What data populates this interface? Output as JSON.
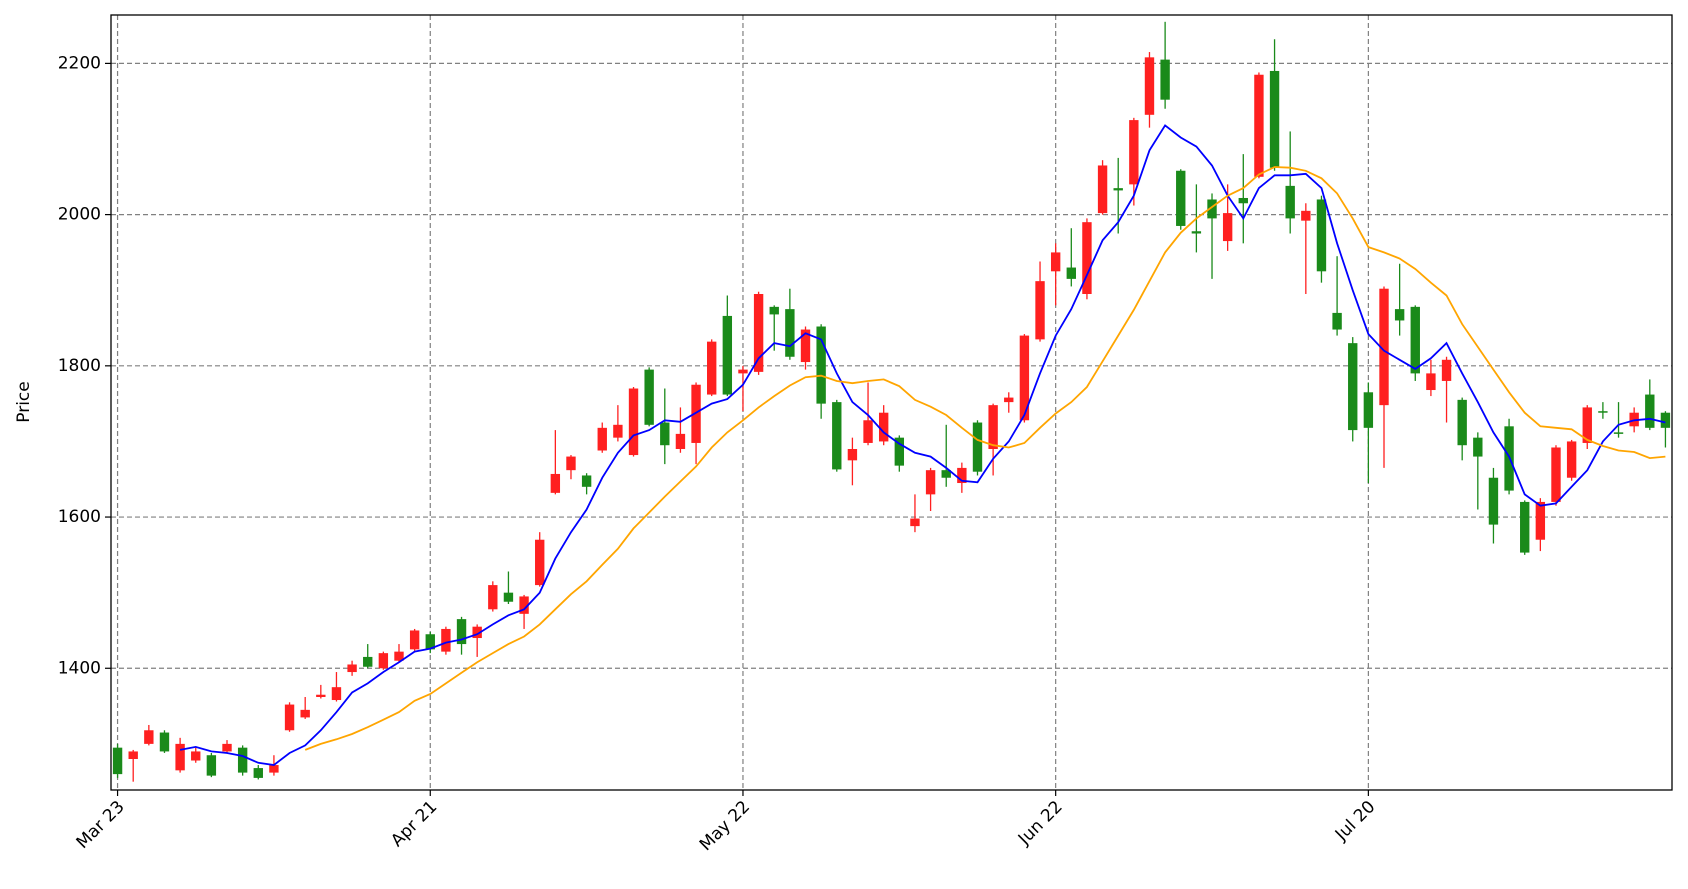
{
  "chart_data": {
    "type": "candlestick",
    "ylabel": "Price",
    "categories": [
      "Mar 23",
      null,
      null,
      null,
      null,
      null,
      null,
      null,
      null,
      null,
      null,
      null,
      null,
      null,
      null,
      null,
      null,
      null,
      null,
      null,
      "Apr 21",
      null,
      null,
      null,
      null,
      null,
      null,
      null,
      null,
      null,
      null,
      null,
      null,
      null,
      null,
      null,
      null,
      null,
      null,
      null,
      "May 22",
      null,
      null,
      null,
      null,
      null,
      null,
      null,
      null,
      null,
      null,
      null,
      null,
      null,
      null,
      null,
      null,
      null,
      null,
      null,
      "Jun 22",
      null,
      null,
      null,
      null,
      null,
      null,
      null,
      null,
      null,
      null,
      null,
      null,
      null,
      null,
      null,
      null,
      null,
      null,
      null,
      "Jul 20",
      null,
      null,
      null,
      null,
      null,
      null,
      null,
      null,
      null,
      null,
      null,
      null,
      null,
      null,
      null,
      null,
      null,
      null,
      null
    ],
    "open": [
      1295,
      1280,
      1300,
      1315,
      1265,
      1278,
      1285,
      1290,
      1295,
      1268,
      1262,
      1318,
      1335,
      1362,
      1358,
      1395,
      1415,
      1400,
      1410,
      1425,
      1445,
      1422,
      1465,
      1440,
      1478,
      1500,
      1472,
      1510,
      1632,
      1662,
      1655,
      1688,
      1705,
      1682,
      1795,
      1725,
      1690,
      1698,
      1762,
      1866,
      1790,
      1792,
      1878,
      1875,
      1805,
      1852,
      1752,
      1675,
      1698,
      1700,
      1705,
      1588,
      1630,
      1662,
      1645,
      1725,
      1690,
      1752,
      1728,
      1835,
      1925,
      1930,
      1895,
      2002,
      2035,
      2040,
      2132,
      2205,
      2058,
      1978,
      2020,
      1965,
      2022,
      2050,
      2190,
      2038,
      1992,
      2020,
      1870,
      1830,
      1765,
      1748,
      1875,
      1878,
      1768,
      1780,
      1755,
      1705,
      1652,
      1720,
      1620,
      1570,
      1620,
      1652,
      1698,
      1740,
      1712,
      1720,
      1762,
      1738
    ],
    "high": [
      1300,
      1292,
      1325,
      1318,
      1308,
      1295,
      1288,
      1305,
      1298,
      1272,
      1285,
      1355,
      1362,
      1378,
      1395,
      1410,
      1432,
      1422,
      1432,
      1452,
      1448,
      1455,
      1468,
      1458,
      1515,
      1528,
      1497,
      1580,
      1715,
      1682,
      1658,
      1725,
      1748,
      1772,
      1798,
      1770,
      1745,
      1778,
      1835,
      1893,
      1800,
      1898,
      1880,
      1902,
      1852,
      1855,
      1755,
      1705,
      1778,
      1748,
      1708,
      1630,
      1665,
      1722,
      1672,
      1728,
      1750,
      1765,
      1842,
      1938,
      1962,
      1982,
      1995,
      2072,
      2075,
      2128,
      2215,
      2255,
      2060,
      2040,
      2028,
      2040,
      2080,
      2188,
      2232,
      2110,
      2015,
      2025,
      1945,
      1838,
      1778,
      1905,
      1935,
      1880,
      1808,
      1812,
      1758,
      1712,
      1665,
      1730,
      1622,
      1625,
      1695,
      1702,
      1748,
      1752,
      1752,
      1745,
      1782,
      1740
    ],
    "low": [
      1255,
      1250,
      1298,
      1288,
      1262,
      1275,
      1256,
      1288,
      1258,
      1253,
      1258,
      1316,
      1333,
      1360,
      1356,
      1390,
      1400,
      1398,
      1408,
      1423,
      1420,
      1418,
      1418,
      1415,
      1475,
      1485,
      1452,
      1508,
      1630,
      1650,
      1630,
      1685,
      1700,
      1680,
      1720,
      1670,
      1685,
      1670,
      1760,
      1760,
      1740,
      1788,
      1820,
      1808,
      1795,
      1730,
      1660,
      1642,
      1695,
      1695,
      1660,
      1580,
      1608,
      1640,
      1632,
      1655,
      1655,
      1738,
      1725,
      1832,
      1880,
      1905,
      1888,
      2000,
      1975,
      2012,
      2115,
      2140,
      1980,
      1950,
      1915,
      1952,
      1962,
      2048,
      2058,
      1975,
      1895,
      1910,
      1840,
      1700,
      1645,
      1665,
      1840,
      1780,
      1760,
      1725,
      1675,
      1610,
      1565,
      1630,
      1550,
      1555,
      1615,
      1648,
      1690,
      1730,
      1705,
      1712,
      1715,
      1692
    ],
    "close": [
      1260,
      1290,
      1318,
      1290,
      1300,
      1290,
      1258,
      1300,
      1262,
      1255,
      1272,
      1352,
      1345,
      1365,
      1375,
      1405,
      1402,
      1420,
      1422,
      1450,
      1425,
      1452,
      1432,
      1455,
      1510,
      1488,
      1495,
      1570,
      1657,
      1680,
      1640,
      1718,
      1722,
      1770,
      1722,
      1695,
      1710,
      1775,
      1832,
      1762,
      1795,
      1895,
      1868,
      1812,
      1848,
      1750,
      1663,
      1690,
      1728,
      1738,
      1668,
      1598,
      1662,
      1652,
      1665,
      1660,
      1748,
      1758,
      1840,
      1912,
      1950,
      1915,
      1990,
      2065,
      2032,
      2125,
      2208,
      2152,
      1985,
      1975,
      1995,
      2002,
      2015,
      2185,
      2062,
      1995,
      2005,
      1925,
      1848,
      1715,
      1718,
      1902,
      1860,
      1790,
      1790,
      1808,
      1695,
      1680,
      1590,
      1635,
      1553,
      1620,
      1692,
      1700,
      1745,
      1738,
      1710,
      1738,
      1718,
      1718
    ],
    "up_color": "#ff2020",
    "down_color": "#1a8a1a",
    "lines": [
      {
        "color": "#0000ff",
        "values": [
          null,
          null,
          null,
          null,
          1292,
          1296,
          1290,
          1288,
          1284,
          1275,
          1272,
          1288,
          1298,
          1318,
          1342,
          1368,
          1380,
          1395,
          1408,
          1422,
          1426,
          1434,
          1438,
          1445,
          1458,
          1470,
          1478,
          1500,
          1545,
          1580,
          1610,
          1652,
          1685,
          1708,
          1715,
          1728,
          1726,
          1738,
          1750,
          1756,
          1775,
          1810,
          1830,
          1826,
          1843,
          1835,
          1790,
          1752,
          1735,
          1712,
          1697,
          1685,
          1680,
          1665,
          1648,
          1646,
          1677,
          1700,
          1735,
          1790,
          1840,
          1875,
          1920,
          1966,
          1990,
          2025,
          2085,
          2118,
          2102,
          2090,
          2065,
          2025,
          1995,
          2035,
          2052,
          2052,
          2054,
          2035,
          1962,
          1900,
          1842,
          1820,
          1808,
          1796,
          1810,
          1830,
          1790,
          1752,
          1712,
          1680,
          1630,
          1615,
          1618,
          1640,
          1662,
          1700,
          1722,
          1728,
          1730,
          1725
        ]
      },
      {
        "color": "#ffa500",
        "values": [
          null,
          null,
          null,
          null,
          null,
          null,
          null,
          null,
          null,
          null,
          null,
          null,
          1292,
          1300,
          1306,
          1313,
          1322,
          1332,
          1342,
          1357,
          1366,
          1380,
          1394,
          1408,
          1420,
          1432,
          1442,
          1458,
          1478,
          1498,
          1515,
          1537,
          1558,
          1585,
          1606,
          1627,
          1647,
          1667,
          1692,
          1712,
          1728,
          1745,
          1760,
          1774,
          1785,
          1787,
          1780,
          1777,
          1780,
          1782,
          1773,
          1755,
          1746,
          1735,
          1718,
          1702,
          1695,
          1692,
          1698,
          1718,
          1737,
          1752,
          1772,
          1806,
          1840,
          1874,
          1912,
          1950,
          1976,
          1995,
          2010,
          2025,
          2035,
          2053,
          2063,
          2062,
          2058,
          2048,
          2028,
          1995,
          1957,
          1950,
          1942,
          1928,
          1910,
          1893,
          1855,
          1825,
          1795,
          1765,
          1738,
          1720,
          1718,
          1716,
          1702,
          1694,
          1688,
          1686,
          1678,
          1680
        ]
      }
    ],
    "ylim": [
      1239,
      2264
    ],
    "yticks": [
      1400,
      1600,
      1800,
      2000,
      2200
    ],
    "grid": true
  }
}
